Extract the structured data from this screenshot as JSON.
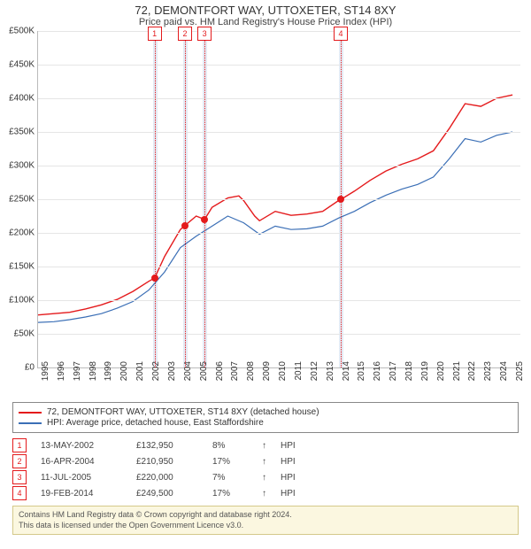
{
  "title_line1": "72, DEMONTFORT WAY, UTTOXETER, ST14 8XY",
  "title_line2": "Price paid vs. HM Land Registry's House Price Index (HPI)",
  "chart": {
    "type": "line",
    "x_min": 1995,
    "x_max": 2025.5,
    "y_min": 0,
    "y_max": 500000,
    "y_ticks": [
      0,
      50000,
      100000,
      150000,
      200000,
      250000,
      300000,
      350000,
      400000,
      450000,
      500000
    ],
    "y_tick_labels": [
      "£0",
      "£50K",
      "£100K",
      "£150K",
      "£200K",
      "£250K",
      "£300K",
      "£350K",
      "£400K",
      "£450K",
      "£500K"
    ],
    "x_ticks": [
      1995,
      1996,
      1997,
      1998,
      1999,
      2000,
      2001,
      2002,
      2003,
      2004,
      2005,
      2006,
      2007,
      2008,
      2009,
      2010,
      2011,
      2012,
      2013,
      2014,
      2015,
      2016,
      2017,
      2018,
      2019,
      2020,
      2021,
      2022,
      2023,
      2024,
      2025
    ],
    "bands": [
      {
        "from": 2002.25,
        "to": 2002.55
      },
      {
        "from": 2004.15,
        "to": 2004.45
      },
      {
        "from": 2005.4,
        "to": 2005.7
      },
      {
        "from": 2014.0,
        "to": 2014.3
      }
    ],
    "markers": [
      {
        "n": "1",
        "x": 2002.37,
        "y": 132950
      },
      {
        "n": "2",
        "x": 2004.29,
        "y": 210950
      },
      {
        "n": "3",
        "x": 2005.53,
        "y": 220000
      },
      {
        "n": "4",
        "x": 2014.14,
        "y": 249500
      }
    ],
    "series": [
      {
        "name": "property",
        "color": "#e41a1c",
        "width": 1.4,
        "points": [
          [
            1995,
            78000
          ],
          [
            1996,
            80000
          ],
          [
            1997,
            82000
          ],
          [
            1998,
            87000
          ],
          [
            1999,
            93000
          ],
          [
            2000,
            101000
          ],
          [
            2001,
            113000
          ],
          [
            2002,
            128000
          ],
          [
            2002.37,
            132950
          ],
          [
            2003,
            165000
          ],
          [
            2004,
            205000
          ],
          [
            2004.29,
            210950
          ],
          [
            2005,
            225000
          ],
          [
            2005.53,
            220000
          ],
          [
            2006,
            238000
          ],
          [
            2007,
            252000
          ],
          [
            2007.7,
            255000
          ],
          [
            2008,
            248000
          ],
          [
            2008.7,
            225000
          ],
          [
            2009,
            218000
          ],
          [
            2010,
            232000
          ],
          [
            2011,
            226000
          ],
          [
            2012,
            228000
          ],
          [
            2013,
            232000
          ],
          [
            2014,
            248000
          ],
          [
            2014.14,
            249500
          ],
          [
            2015,
            262000
          ],
          [
            2016,
            278000
          ],
          [
            2017,
            292000
          ],
          [
            2018,
            302000
          ],
          [
            2019,
            310000
          ],
          [
            2020,
            322000
          ],
          [
            2021,
            355000
          ],
          [
            2022,
            392000
          ],
          [
            2023,
            388000
          ],
          [
            2024,
            400000
          ],
          [
            2025,
            405000
          ]
        ]
      },
      {
        "name": "hpi",
        "color": "#3b6fb6",
        "width": 1.2,
        "points": [
          [
            1995,
            67000
          ],
          [
            1996,
            68000
          ],
          [
            1997,
            71000
          ],
          [
            1998,
            75000
          ],
          [
            1999,
            80000
          ],
          [
            2000,
            88000
          ],
          [
            2001,
            98000
          ],
          [
            2002,
            115000
          ],
          [
            2003,
            142000
          ],
          [
            2004,
            178000
          ],
          [
            2005,
            195000
          ],
          [
            2006,
            210000
          ],
          [
            2007,
            225000
          ],
          [
            2008,
            215000
          ],
          [
            2009,
            198000
          ],
          [
            2010,
            210000
          ],
          [
            2011,
            205000
          ],
          [
            2012,
            206000
          ],
          [
            2013,
            210000
          ],
          [
            2014,
            222000
          ],
          [
            2015,
            232000
          ],
          [
            2016,
            245000
          ],
          [
            2017,
            256000
          ],
          [
            2018,
            265000
          ],
          [
            2019,
            272000
          ],
          [
            2020,
            283000
          ],
          [
            2021,
            310000
          ],
          [
            2022,
            340000
          ],
          [
            2023,
            335000
          ],
          [
            2024,
            345000
          ],
          [
            2025,
            350000
          ]
        ]
      }
    ]
  },
  "legend": [
    {
      "color": "#e41a1c",
      "label": "72, DEMONTFORT WAY, UTTOXETER, ST14 8XY (detached house)"
    },
    {
      "color": "#3b6fb6",
      "label": "HPI: Average price, detached house, East Staffordshire"
    }
  ],
  "transactions": [
    {
      "n": "1",
      "date": "13-MAY-2002",
      "price": "£132,950",
      "pct": "8%",
      "arrow": "↑",
      "suffix": "HPI"
    },
    {
      "n": "2",
      "date": "16-APR-2004",
      "price": "£210,950",
      "pct": "17%",
      "arrow": "↑",
      "suffix": "HPI"
    },
    {
      "n": "3",
      "date": "11-JUL-2005",
      "price": "£220,000",
      "pct": "7%",
      "arrow": "↑",
      "suffix": "HPI"
    },
    {
      "n": "4",
      "date": "19-FEB-2014",
      "price": "£249,500",
      "pct": "17%",
      "arrow": "↑",
      "suffix": "HPI"
    }
  ],
  "footer_l1": "Contains HM Land Registry data © Crown copyright and database right 2024.",
  "footer_l2": "This data is licensed under the Open Government Licence v3.0."
}
